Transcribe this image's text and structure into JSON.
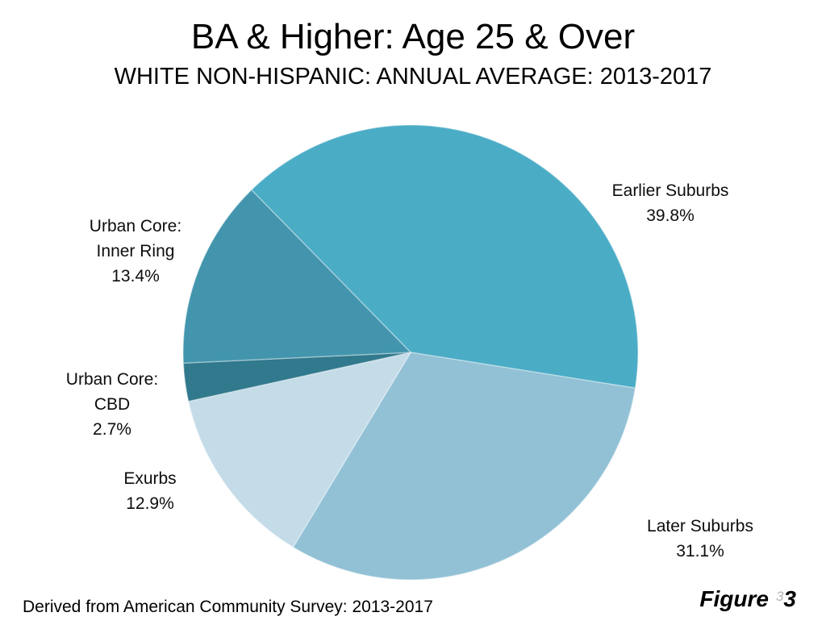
{
  "chart_data": {
    "type": "pie",
    "title": "BA & Higher: Age 25 & Over",
    "subtitle": "WHITE NON-HISPANIC: ANNUAL AVERAGE: 2013-2017",
    "source_note": "Derived from American Community Survey: 2013-2017",
    "unit": "%",
    "legend_position": "none",
    "labels_position": "outside",
    "direction": "clockwise",
    "start_angle_deg": -44.4,
    "slices": [
      {
        "id": "earlier-suburbs",
        "label": "Earlier Suburbs",
        "value": 39.8,
        "pct_label": "39.8%",
        "color": "#4BACC6",
        "lines": [
          "Earlier Suburbs",
          "39.8%"
        ]
      },
      {
        "id": "later-suburbs",
        "label": "Later Suburbs",
        "value": 31.1,
        "pct_label": "31.1%",
        "color": "#92C1D5",
        "lines": [
          "Later Suburbs",
          "31.1%"
        ]
      },
      {
        "id": "exurbs",
        "label": "Exurbs",
        "value": 12.9,
        "pct_label": "12.9%",
        "color": "#C4DBE8",
        "lines": [
          "Exurbs",
          "12.9%"
        ]
      },
      {
        "id": "urban-core-cbd",
        "label": "Urban Core: CBD",
        "value": 2.7,
        "pct_label": "2.7%",
        "color": "#31798D",
        "lines": [
          "Urban Core:",
          "CBD",
          "2.7%"
        ]
      },
      {
        "id": "urban-core-inner-ring",
        "label": "Urban Core: Inner Ring",
        "value": 13.4,
        "pct_label": "13.4%",
        "color": "#4295AC",
        "lines": [
          "Urban Core:",
          "Inner Ring",
          "13.4%"
        ]
      }
    ]
  },
  "footer": {
    "figure_label": "Figure",
    "figure_number": "3",
    "ghost_digit": "3"
  }
}
